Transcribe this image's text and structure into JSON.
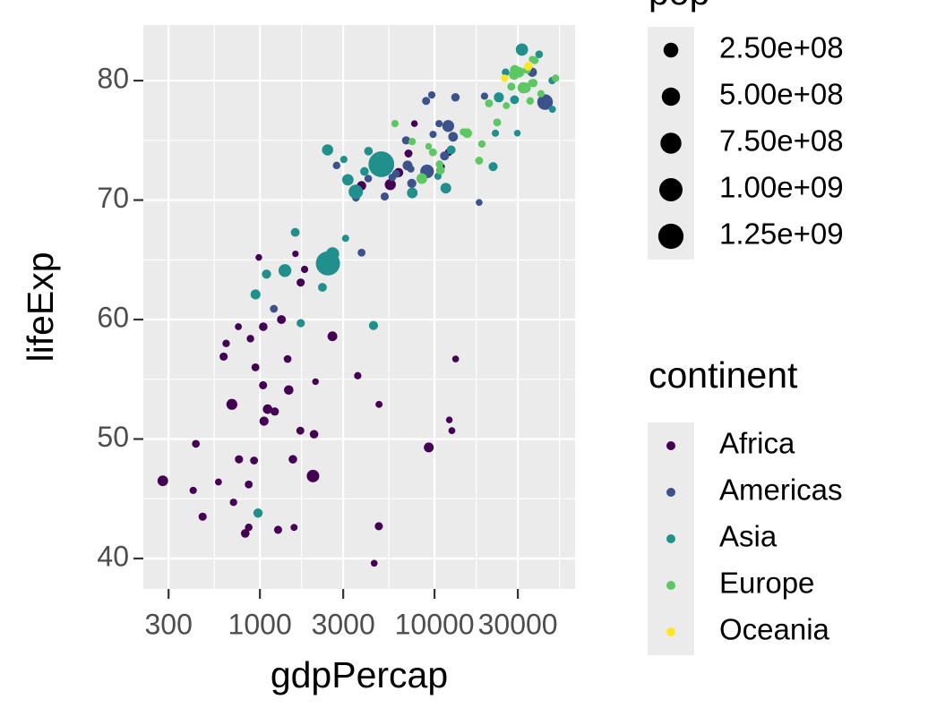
{
  "chart_data": {
    "type": "scatter",
    "x_label": "gdpPercap",
    "y_label": "lifeExp",
    "xlog": true,
    "grid": true,
    "xlim": [
      215,
      63800
    ],
    "ylim": [
      37.45,
      84.65
    ],
    "xticks": [
      300,
      1000,
      3000,
      10000,
      30000
    ],
    "yticks": [
      40,
      50,
      60,
      70,
      80
    ],
    "legend_title": "continent",
    "size_legend": {
      "title": "pop",
      "values": [
        {
          "value": 250000000,
          "label": "2.50e+08"
        },
        {
          "value": 500000000,
          "label": "5.00e+08"
        },
        {
          "value": 750000000,
          "label": "7.50e+08"
        },
        {
          "value": 1000000000,
          "label": "1.00e+09"
        },
        {
          "value": 1250000000,
          "label": "1.25e+09"
        }
      ]
    },
    "series": [
      {
        "name": "Africa",
        "color": "#440154",
        "x": [
          6223,
          4797,
          1441,
          12570,
          1217,
          430,
          2042,
          706,
          1704,
          986,
          278,
          3633,
          1545,
          2082,
          5581,
          12154,
          641,
          691,
          13206,
          753,
          1328,
          943,
          579,
          1463,
          1569,
          415,
          12057,
          1045,
          759,
          1043,
          1803,
          10957,
          3820,
          824,
          4811,
          620,
          2014,
          7670,
          863,
          1598,
          1712,
          863,
          926,
          9270,
          2602,
          4513,
          1107,
          883,
          7093,
          1056,
          1271,
          470
        ],
        "values": [
          72.3,
          42.7,
          56.7,
          50.7,
          52.3,
          49.6,
          50.4,
          44.7,
          50.7,
          65.2,
          46.5,
          55.3,
          48.3,
          54.8,
          71.3,
          51.6,
          58.0,
          52.9,
          56.7,
          59.4,
          60.0,
          56.0,
          46.4,
          54.1,
          42.6,
          45.7,
          74.0,
          59.4,
          48.3,
          54.5,
          64.2,
          72.8,
          71.2,
          42.1,
          52.9,
          56.9,
          46.9,
          76.4,
          46.2,
          65.5,
          63.1,
          42.6,
          48.2,
          49.3,
          58.6,
          39.6,
          52.5,
          58.4,
          73.9,
          51.5,
          42.4,
          43.5
        ],
        "sizes": [
          33300000.0,
          12400000.0,
          8100000.0,
          1600000.0,
          14300000.0,
          8400000.0,
          17700000.0,
          4400000.0,
          10200000.0,
          700000.0,
          64600000.0,
          3800000.0,
          18000000.0,
          500000.0,
          80300000.0,
          550000.0,
          4900000.0,
          76500000.0,
          1450000.0,
          1700000.0,
          22900000.0,
          9900000.0,
          1500000.0,
          35600000.0,
          2000000.0,
          3200000.0,
          6000000.0,
          19200000.0,
          13300000.0,
          12000000.0,
          3300000.0,
          1250000.0,
          33800000.0,
          19950000.0,
          2060000.0,
          12900000.0,
          135000000.0,
          800000.0,
          8900000.0,
          200000.0,
          12300000.0,
          6100000.0,
          9100000.0,
          44000000.0,
          42300000.0,
          1100000.0,
          38100000.0,
          5700000.0,
          10300000.0,
          29200000.0,
          11700000.0,
          12300000.0
        ]
      },
      {
        "name": "Americas",
        "color": "#3b528b",
        "x": [
          12779,
          3822,
          9066,
          36319,
          13172,
          7007,
          9645,
          8948,
          6025,
          6873,
          5728,
          5186,
          1202,
          3548,
          7321,
          11978,
          2749,
          9809,
          4173,
          7409,
          19329,
          18009,
          42952,
          10611,
          11416
        ],
        "values": [
          75.3,
          65.6,
          72.4,
          80.7,
          78.6,
          72.9,
          78.8,
          78.3,
          72.2,
          75.0,
          71.9,
          70.3,
          60.9,
          70.2,
          72.6,
          76.2,
          72.9,
          75.5,
          71.8,
          71.4,
          78.7,
          69.8,
          78.2,
          76.4,
          73.7
        ],
        "sizes": [
          40300000.0,
          9100000.0,
          190000000.0,
          33400000.0,
          16300000.0,
          44200000.0,
          4100000.0,
          11400000.0,
          9300000.0,
          13800000.0,
          6900000.0,
          12600000.0,
          8500000.0,
          7500000.0,
          2800000.0,
          108700000.0,
          5700000.0,
          3200000.0,
          6700000.0,
          28700000.0,
          3900000.0,
          1060000.0,
          301000000.0,
          3400000.0,
          26100000.0
        ]
      },
      {
        "name": "Asia",
        "color": "#21908c",
        "x": [
          975,
          29796,
          1391,
          1714,
          4959,
          39725,
          2452,
          3541,
          11606,
          4471,
          25523,
          31656,
          4519,
          1593,
          23348,
          47307,
          10461,
          12452,
          3096,
          944,
          1091,
          22316,
          2606,
          3190,
          21655,
          47143,
          3970,
          4185,
          28718,
          7458,
          2442,
          3025,
          2281
        ],
        "values": [
          43.8,
          75.6,
          64.1,
          59.7,
          73.0,
          82.2,
          64.7,
          70.7,
          71.0,
          59.5,
          80.7,
          82.6,
          72.5,
          67.3,
          78.6,
          77.6,
          72.0,
          74.2,
          66.8,
          62.1,
          63.8,
          75.6,
          65.5,
          71.7,
          72.8,
          80.0,
          72.4,
          74.1,
          78.4,
          70.6,
          74.2,
          73.4,
          62.7
        ],
        "sizes": [
          31900000.0,
          700000.0,
          150000000.0,
          14100000.0,
          1319000000.0,
          6980000.0,
          1110000000.0,
          223500000.0,
          69500000.0,
          27500000.0,
          6400000.0,
          127500000.0,
          6050000.0,
          23300000.0,
          49000000.0,
          2500000.0,
          3900000.0,
          24800000.0,
          2900000.0,
          47800000.0,
          28900000.0,
          3200000.0,
          169000000.0,
          91000000.0,
          27600000.0,
          4600000.0,
          20400000.0,
          19300000.0,
          23200000.0,
          65000000.0,
          85300000.0,
          4000000.0,
          22200000.0
        ]
      },
      {
        "name": "Europe",
        "color": "#5dc863",
        "x": [
          5937,
          36126,
          33693,
          7446,
          10681,
          14619,
          22833,
          35278,
          33207,
          30470,
          32170,
          27538,
          18009,
          36181,
          40676,
          28570,
          9254,
          36798,
          49357,
          15390,
          20510,
          10808,
          9787,
          18678,
          25768,
          28821,
          33860,
          37506,
          8458,
          33203
        ],
        "values": [
          76.4,
          79.8,
          79.4,
          74.9,
          73.0,
          75.7,
          76.5,
          78.3,
          79.3,
          80.7,
          79.4,
          79.5,
          73.3,
          81.8,
          78.9,
          80.5,
          74.5,
          79.8,
          80.2,
          75.6,
          78.1,
          72.5,
          74.0,
          74.7,
          77.9,
          80.9,
          80.9,
          81.7,
          71.8,
          79.4
        ],
        "sizes": [
          3600000.0,
          8200000.0,
          10400000.0,
          4550000.0,
          7300000.0,
          4500000.0,
          10200000.0,
          5500000.0,
          5200000.0,
          61000000.0,
          82400000.0,
          10700000.0,
          9960000.0,
          300000.0,
          4100000.0,
          58100000.0,
          680000.0,
          16600000.0,
          4600000.0,
          38500000.0,
          10600000.0,
          22300000.0,
          10200000.0,
          5400000.0,
          2000000.0,
          40400000.0,
          9000000.0,
          7550000.0,
          71200000.0,
          60800000.0
        ]
      },
      {
        "name": "Oceania",
        "color": "#fde725",
        "x": [
          34435,
          25185
        ],
        "values": [
          81.2,
          80.2
        ],
        "sizes": [
          20400000.0,
          4100000.0
        ]
      }
    ]
  }
}
